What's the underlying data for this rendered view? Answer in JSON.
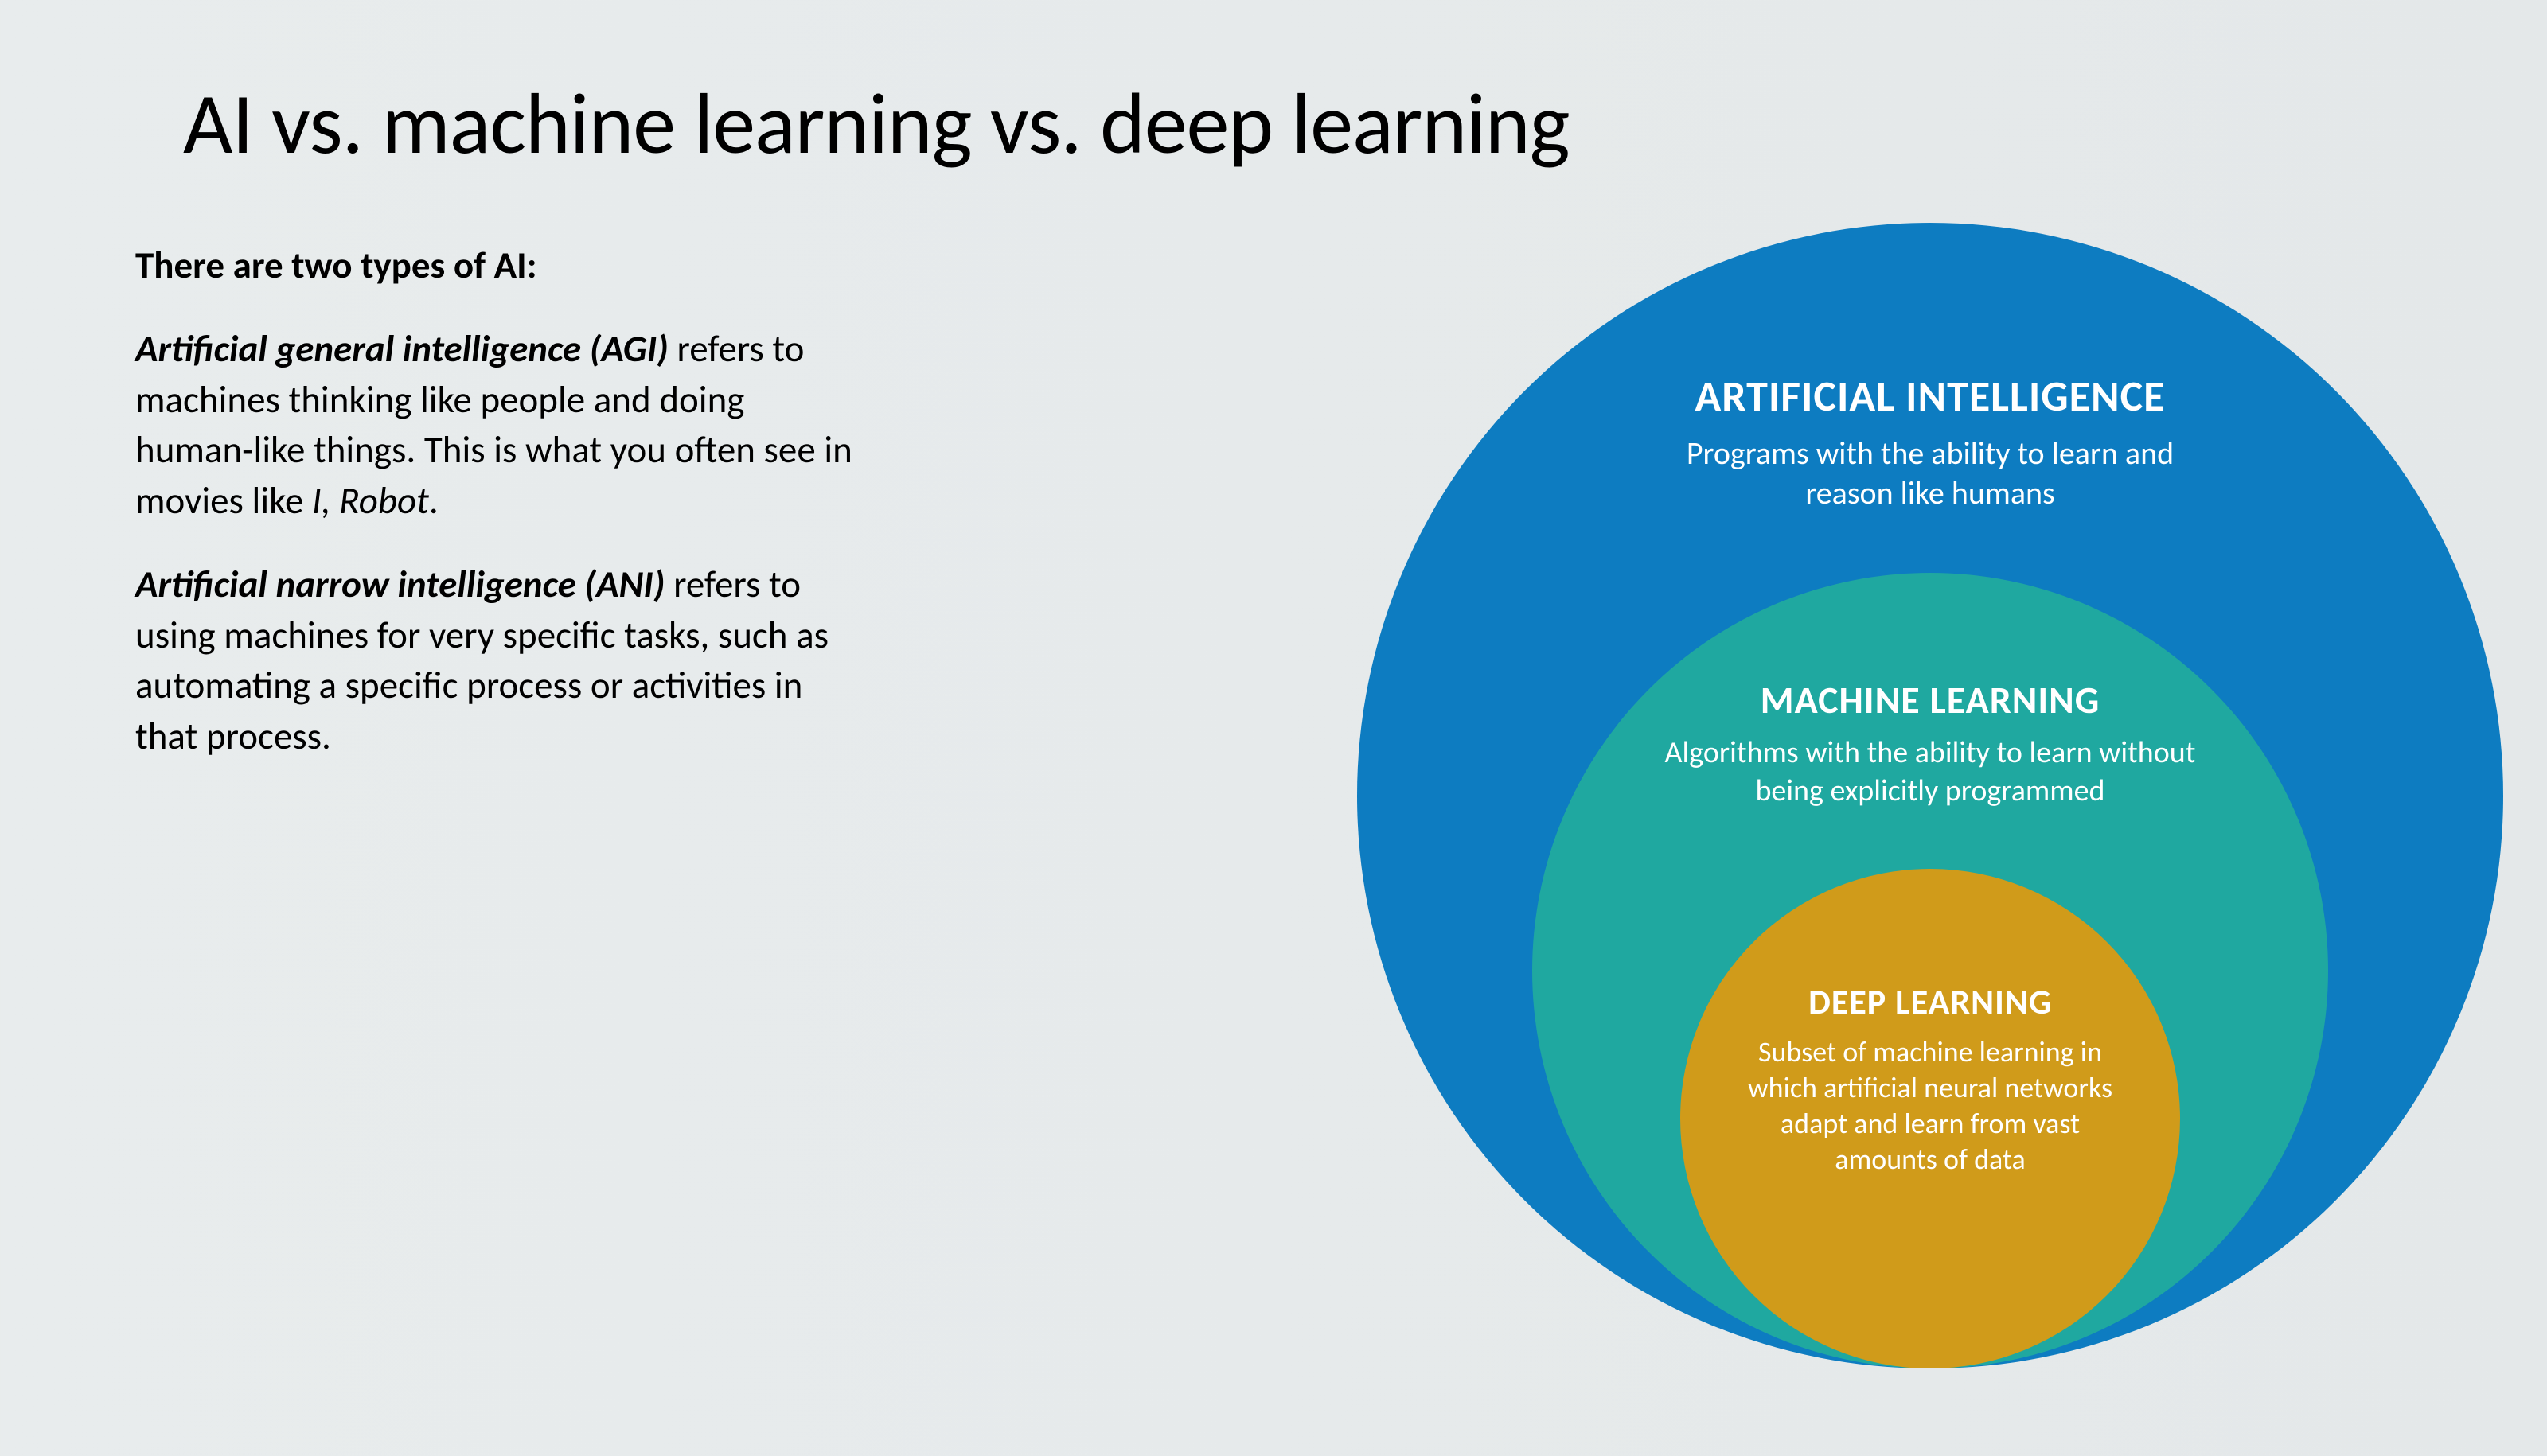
{
  "slide": {
    "title": "AI vs. machine learning vs. deep learning",
    "background_color": "#e8eced",
    "title_color": "#000000",
    "title_fontsize": 108,
    "title_fontweight": 300
  },
  "text": {
    "intro": "There are two types of AI:",
    "para1_term": "Artificial general intelligence (AGI)",
    "para1_body": " refers to machines thinking like people and doing human-like things. This is what you often see in movies like ",
    "para1_movie": "I, Robot",
    "para1_end": ".",
    "para2_term": "Artificial narrow intelligence (ANI)",
    "para2_body": " refers to using machines for very specific tasks, such as automating a specific process or activities in that process.",
    "fontsize": 47,
    "color": "#000000"
  },
  "diagram": {
    "type": "nested-circles",
    "text_color": "#ffffff",
    "circles": [
      {
        "id": "ai",
        "title": "ARTIFICIAL INTELLIGENCE",
        "desc": "Programs with the ability to learn and reason like humans",
        "color": "#0d7cc1",
        "diameter": 1440,
        "title_fontsize": 54,
        "desc_fontsize": 40
      },
      {
        "id": "ml",
        "title": "MACHINE LEARNING",
        "desc": "Algorithms with the ability to learn without being explicitly programmed",
        "color": "#1fa8a0",
        "diameter": 1000,
        "title_fontsize": 48,
        "desc_fontsize": 38
      },
      {
        "id": "dl",
        "title": "DEEP LEARNING",
        "desc": "Subset of machine learning in which artificial neural networks adapt and learn from vast amounts of data",
        "color": "#d09b1a",
        "diameter": 628,
        "title_fontsize": 44,
        "desc_fontsize": 36
      }
    ]
  }
}
